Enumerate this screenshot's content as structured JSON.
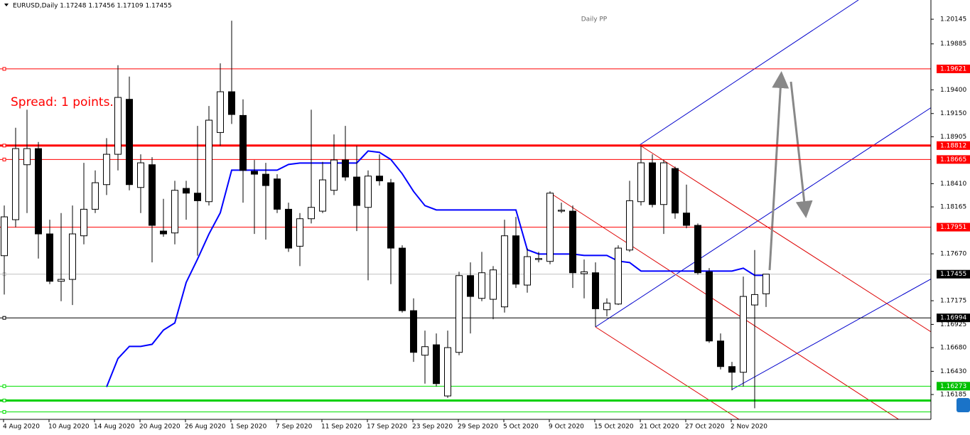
{
  "chart_data": {
    "type": "candlestick",
    "title": "EURUSD,Daily  1.17248 1.17456 1.17109 1.17455",
    "annotation": "Spread: 1 points.",
    "categories": [
      null,
      "4 Aug 2020",
      null,
      null,
      null,
      "10 Aug 2020",
      null,
      null,
      null,
      "14 Aug 2020",
      null,
      null,
      null,
      "20 Aug 2020",
      null,
      null,
      null,
      "26 Aug 2020",
      null,
      null,
      null,
      "1 Sep 2020",
      null,
      null,
      null,
      "7 Sep 2020",
      null,
      null,
      null,
      "11 Sep 2020",
      null,
      null,
      null,
      "17 Sep 2020",
      null,
      null,
      null,
      "23 Sep 2020",
      null,
      null,
      null,
      "29 Sep 2020",
      null,
      null,
      null,
      "5 Oct 2020",
      null,
      null,
      null,
      "9 Oct 2020",
      null,
      null,
      null,
      "15 Oct 2020",
      null,
      null,
      null,
      "21 Oct 2020",
      null,
      null,
      null,
      "27 Oct 2020",
      null,
      null,
      null,
      "2 Nov 2020",
      null,
      null
    ],
    "open": [
      1.1765,
      1.1803,
      1.1861,
      1.1878,
      1.1788,
      1.1738,
      1.174,
      1.1786,
      1.1814,
      1.184,
      1.1872,
      1.193,
      1.1837,
      1.1861,
      1.1791,
      1.1789,
      1.1836,
      1.1831,
      1.1822,
      1.1895,
      1.1938,
      1.1913,
      1.1854,
      1.1851,
      1.1846,
      1.1814,
      1.1775,
      1.1804,
      1.1812,
      1.1834,
      1.1866,
      1.1848,
      1.1816,
      1.1849,
      1.1842,
      1.1773,
      1.1707,
      1.166,
      1.1671,
      1.1617,
      1.1663,
      1.1744,
      1.172,
      1.1719,
      1.1711,
      1.1786,
      1.1734,
      1.1761,
      1.1759,
      1.1812,
      1.1812,
      1.1746,
      1.1747,
      1.1708,
      1.1714,
      1.1771,
      1.1822,
      1.1863,
      1.1819,
      1.1857,
      1.181,
      1.1797,
      1.1748,
      1.1675,
      1.1648,
      1.1642,
      1.1713,
      1.17248
    ],
    "high": [
      1.1818,
      1.19,
      1.1919,
      1.1885,
      1.1803,
      1.181,
      1.1818,
      1.1863,
      1.1855,
      1.1889,
      1.1966,
      1.1954,
      1.1872,
      1.1869,
      1.1825,
      1.1844,
      1.1844,
      1.1902,
      1.1923,
      1.1968,
      1.2013,
      1.193,
      1.1866,
      1.1863,
      1.1851,
      1.1821,
      1.181,
      1.1919,
      1.1864,
      1.1893,
      1.1902,
      1.1881,
      1.1855,
      1.1872,
      1.1846,
      1.1776,
      1.172,
      1.1686,
      1.1683,
      1.1686,
      1.1748,
      1.1758,
      1.1769,
      1.1754,
      1.1803,
      1.1806,
      1.1773,
      1.1769,
      1.1833,
      1.1821,
      1.1818,
      1.1761,
      1.1758,
      1.172,
      1.1776,
      1.1844,
      1.1881,
      1.1872,
      1.1866,
      1.1859,
      1.184,
      1.1799,
      1.1752,
      1.1683,
      1.1653,
      1.1743,
      1.1771,
      1.17456
    ],
    "low": [
      1.1724,
      1.1795,
      1.181,
      1.1762,
      1.1735,
      1.1717,
      1.1713,
      1.1777,
      1.181,
      1.1829,
      1.1855,
      1.1834,
      1.181,
      1.1758,
      1.1785,
      1.1777,
      1.1803,
      1.1765,
      1.1818,
      1.1881,
      1.1904,
      1.1821,
      1.1788,
      1.1782,
      1.181,
      1.1769,
      1.1754,
      1.1799,
      1.181,
      1.1829,
      1.1844,
      1.1791,
      1.1739,
      1.1839,
      1.1735,
      1.1705,
      1.1653,
      1.163,
      1.1627,
      1.1615,
      1.166,
      1.1683,
      1.1717,
      1.1698,
      1.1705,
      1.1731,
      1.1726,
      1.1758,
      1.1756,
      1.181,
      1.1731,
      1.172,
      1.169,
      1.1701,
      1.1713,
      1.1769,
      1.1818,
      1.1816,
      1.1788,
      1.1804,
      1.1794,
      1.1745,
      1.1673,
      1.1645,
      1.1623,
      1.1627,
      1.1604,
      1.17109
    ],
    "close": [
      1.1806,
      1.1878,
      1.1878,
      1.1788,
      1.1738,
      1.174,
      1.1788,
      1.1814,
      1.1842,
      1.1872,
      1.1932,
      1.184,
      1.1863,
      1.1797,
      1.1788,
      1.1834,
      1.1831,
      1.1823,
      1.1908,
      1.1938,
      1.1914,
      1.1855,
      1.1851,
      1.1839,
      1.1814,
      1.1773,
      1.1804,
      1.1816,
      1.1845,
      1.1866,
      1.1848,
      1.1818,
      1.1849,
      1.1844,
      1.1773,
      1.1707,
      1.1663,
      1.1669,
      1.163,
      1.1668,
      1.1744,
      1.1722,
      1.1747,
      1.175,
      1.1786,
      1.1735,
      1.1764,
      1.1762,
      1.1831,
      1.1813,
      1.1747,
      1.1748,
      1.1709,
      1.1715,
      1.1773,
      1.1823,
      1.1863,
      1.1819,
      1.1863,
      1.181,
      1.1797,
      1.1747,
      1.1675,
      1.1648,
      1.1642,
      1.1722,
      1.1724,
      1.17455
    ],
    "up_color": "#ffffff",
    "down_color": "#000000",
    "indicator": {
      "name": "Daily PP",
      "color": "#0000ff",
      "values": [
        null,
        null,
        null,
        null,
        null,
        null,
        null,
        null,
        null,
        1.16265,
        1.16565,
        1.16693,
        1.16693,
        1.16715,
        1.16865,
        1.1694,
        1.17368,
        1.17615,
        1.17878,
        1.18103,
        1.18553,
        1.18553,
        1.18553,
        1.18553,
        1.18553,
        1.18613,
        1.18628,
        1.18628,
        1.18628,
        1.18628,
        1.18628,
        1.18628,
        1.18755,
        1.1874,
        1.18665,
        1.18515,
        1.18328,
        1.18178,
        1.18133,
        1.18133,
        1.18133,
        1.18133,
        1.18133,
        1.18133,
        1.18133,
        1.18133,
        1.17713,
        1.17668,
        1.17668,
        1.17668,
        1.17668,
        1.17653,
        1.17653,
        1.17653,
        1.17593,
        1.17578,
        1.17488,
        1.17488,
        1.17488,
        1.17488,
        1.17488,
        1.17488,
        1.17488,
        1.17488,
        1.17488,
        1.17518,
        1.17443,
        1.17443
      ]
    },
    "levels": [
      {
        "value": 1.19621,
        "color": "#ff0000",
        "width": 1,
        "label_bg": "#ff0000"
      },
      {
        "value": 1.18812,
        "color": "#ff0000",
        "width": 3,
        "label_bg": "#ff0000"
      },
      {
        "value": 1.18665,
        "color": "#ff0000",
        "width": 1,
        "label_bg": "#ff0000"
      },
      {
        "value": 1.17951,
        "color": "#ff0000",
        "width": 1,
        "label_bg": "#ff0000"
      },
      {
        "value": 1.17455,
        "color": "#c0c0c0",
        "width": 1,
        "label_bg": "#000000"
      },
      {
        "value": 1.16994,
        "color": "#000000",
        "width": 1,
        "label_bg": "#000000"
      },
      {
        "value": 1.16273,
        "color": "#00e000",
        "width": 1,
        "label_bg": "#00c000"
      },
      {
        "value": 1.16122,
        "color": "#00d000",
        "width": 3
      },
      {
        "value": 1.16002,
        "color": "#00e000",
        "width": 1
      }
    ],
    "ylim": [
      1.15923,
      1.20348
    ],
    "yticks": [
      1.20145,
      1.19885,
      {
        "value": 1.194,
        "label": "1.19400"
      },
      {
        "value": 1.1915,
        "label": "1.19150"
      },
      1.18905,
      {
        "value": 1.1841,
        "label": "1.18410"
      },
      1.18165,
      {
        "value": 1.1767,
        "label": "1.17670"
      },
      1.17175,
      1.16925,
      {
        "value": 1.1668,
        "label": "1.16680"
      },
      {
        "value": 1.1643,
        "label": "1.16430"
      },
      1.16185
    ]
  }
}
